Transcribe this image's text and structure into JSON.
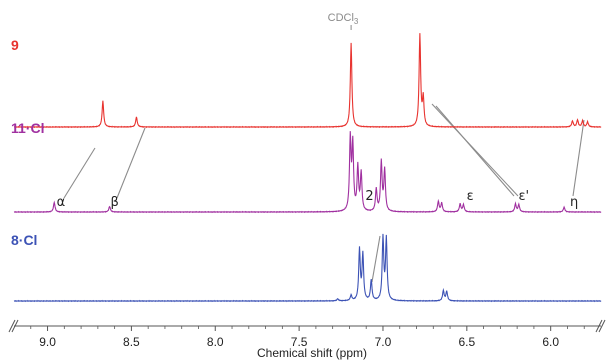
{
  "chart_data": {
    "type": "line",
    "xlabel": "Chemical shift (ppm)",
    "xlim": [
      9.2,
      5.7
    ],
    "x_ticks": [
      "9.0",
      "8.5",
      "8.0",
      "7.5",
      "7.0",
      "6.5",
      "6.0"
    ],
    "x_tick_values": [
      9.0,
      8.5,
      8.0,
      7.5,
      7.0,
      6.5,
      6.0
    ],
    "solvent_label": "CDCl",
    "solvent_subscript": "3",
    "solvent_shift": 7.19,
    "series": [
      {
        "name": "9",
        "color": "#e8332f",
        "peaks": [
          {
            "shift": 8.67,
            "height": 0.26
          },
          {
            "shift": 8.47,
            "height": 0.1
          },
          {
            "shift": 7.19,
            "height": 0.84
          },
          {
            "shift": 6.78,
            "height": 0.92
          },
          {
            "shift": 6.76,
            "height": 0.28
          },
          {
            "shift": 5.87,
            "height": 0.06
          },
          {
            "shift": 5.84,
            "height": 0.07
          },
          {
            "shift": 5.81,
            "height": 0.06
          },
          {
            "shift": 5.78,
            "height": 0.05
          }
        ]
      },
      {
        "name": "11·Cl",
        "color": "#a030a0",
        "peaks": [
          {
            "shift": 8.96,
            "height": 0.12
          },
          {
            "shift": 8.63,
            "height": 0.07
          },
          {
            "shift": 7.195,
            "height": 0.9
          },
          {
            "shift": 7.18,
            "height": 0.82
          },
          {
            "shift": 7.15,
            "height": 0.55
          },
          {
            "shift": 7.13,
            "height": 0.48
          },
          {
            "shift": 7.04,
            "height": 0.28
          },
          {
            "shift": 7.01,
            "height": 0.62
          },
          {
            "shift": 6.99,
            "height": 0.52
          },
          {
            "shift": 6.67,
            "height": 0.13
          },
          {
            "shift": 6.65,
            "height": 0.11
          },
          {
            "shift": 6.54,
            "height": 0.1
          },
          {
            "shift": 6.52,
            "height": 0.09
          },
          {
            "shift": 6.21,
            "height": 0.1
          },
          {
            "shift": 6.19,
            "height": 0.09
          },
          {
            "shift": 5.92,
            "height": 0.06
          }
        ]
      },
      {
        "name": "8·Cl",
        "color": "#3c52b5",
        "peaks": [
          {
            "shift": 7.19,
            "height": 0.08
          },
          {
            "shift": 7.14,
            "height": 0.75
          },
          {
            "shift": 7.12,
            "height": 0.68
          },
          {
            "shift": 7.07,
            "height": 0.3
          },
          {
            "shift": 7.0,
            "height": 0.92
          },
          {
            "shift": 6.98,
            "height": 0.9
          },
          {
            "shift": 6.64,
            "height": 0.15
          },
          {
            "shift": 6.62,
            "height": 0.14
          },
          {
            "shift": 7.27,
            "height": 0.03
          }
        ]
      }
    ],
    "annotations": [
      {
        "text": "α",
        "shift": 8.92,
        "series": "11·Cl"
      },
      {
        "text": "β",
        "shift": 8.6,
        "series": "11·Cl"
      },
      {
        "text": "2",
        "shift": 7.08,
        "series": "11·Cl"
      },
      {
        "text": "ε",
        "shift": 6.48,
        "series": "11·Cl"
      },
      {
        "text": "ε'",
        "shift": 6.16,
        "series": "11·Cl"
      },
      {
        "text": "η",
        "shift": 5.86,
        "series": "11·Cl"
      }
    ],
    "correlations": [
      {
        "from_series": "9",
        "from_shift": 8.67,
        "to_series": "11·Cl",
        "to_shift": 8.96
      },
      {
        "from_series": "9",
        "from_shift": 8.47,
        "to_series": "11·Cl",
        "to_shift": 8.63
      },
      {
        "from_series": "9",
        "from_shift": 6.78,
        "to_series": "11·Cl",
        "to_shift": 6.53
      },
      {
        "from_series": "9",
        "from_shift": 6.78,
        "to_series": "11·Cl",
        "to_shift": 6.2
      },
      {
        "from_series": "9",
        "from_shift": 5.87,
        "to_series": "11·Cl",
        "to_shift": 5.92
      },
      {
        "from_series": "8·Cl",
        "from_shift": 7.07,
        "to_series": "11·Cl",
        "to_shift": 7.04
      }
    ],
    "grid": false
  }
}
